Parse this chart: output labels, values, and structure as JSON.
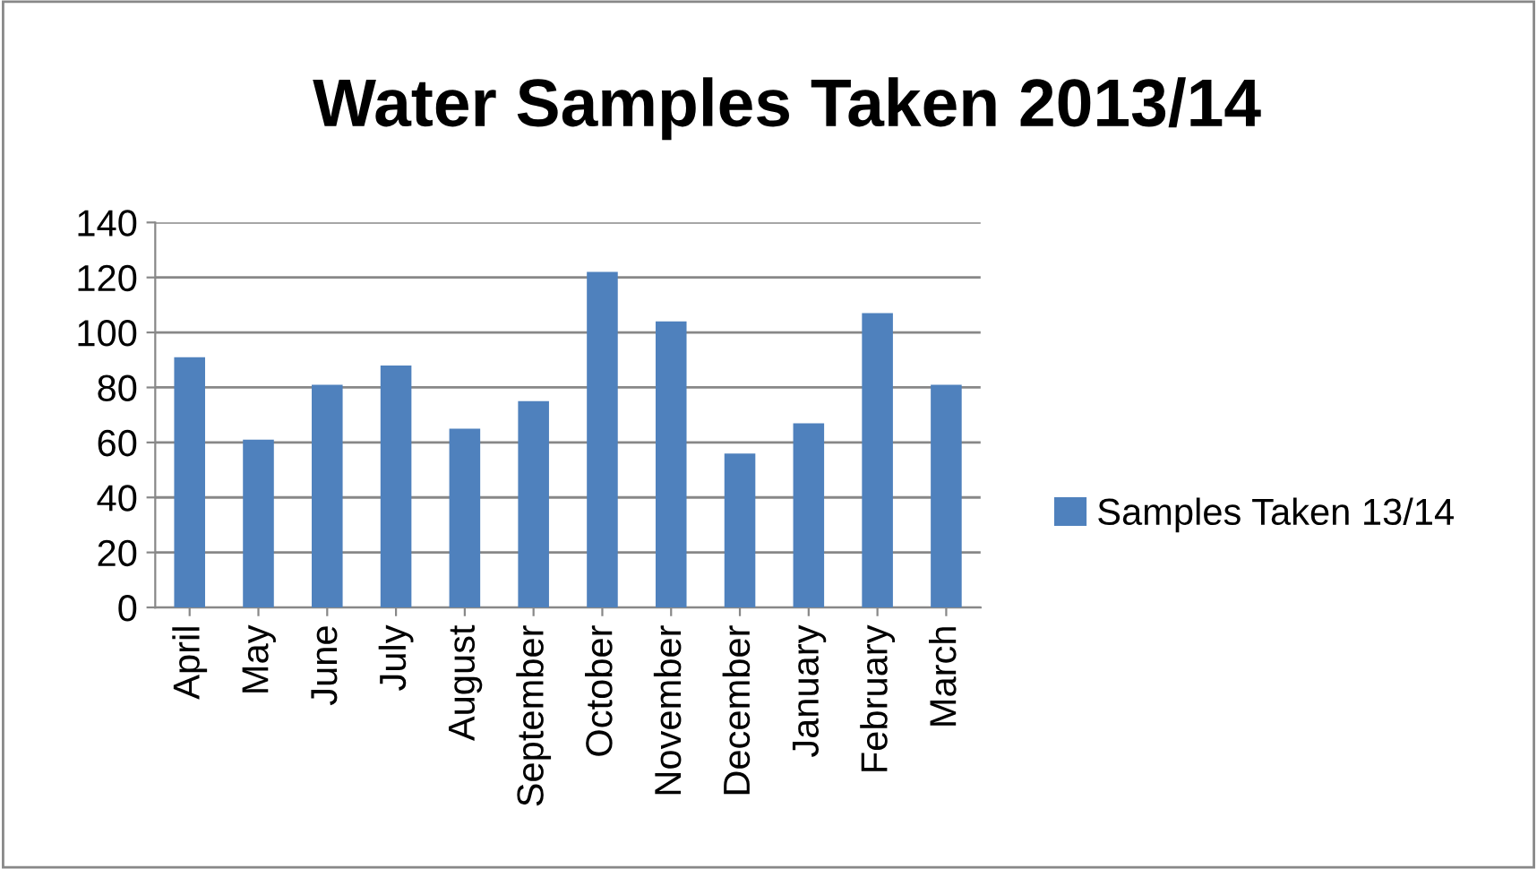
{
  "chart_data": {
    "type": "bar",
    "title": "Water Samples Taken 2013/14",
    "categories": [
      "April",
      "May",
      "June",
      "July",
      "August",
      "September",
      "October",
      "November",
      "December",
      "January",
      "February",
      "March"
    ],
    "series": [
      {
        "name": "Samples Taken 13/14",
        "color": "#4f81bd",
        "values": [
          91,
          61,
          81,
          88,
          65,
          75,
          122,
          104,
          56,
          67,
          107,
          81
        ]
      }
    ],
    "ylim": [
      0,
      140
    ],
    "yticks": [
      0,
      20,
      40,
      60,
      80,
      100,
      120,
      140
    ],
    "grid": "y",
    "legend": "right"
  }
}
